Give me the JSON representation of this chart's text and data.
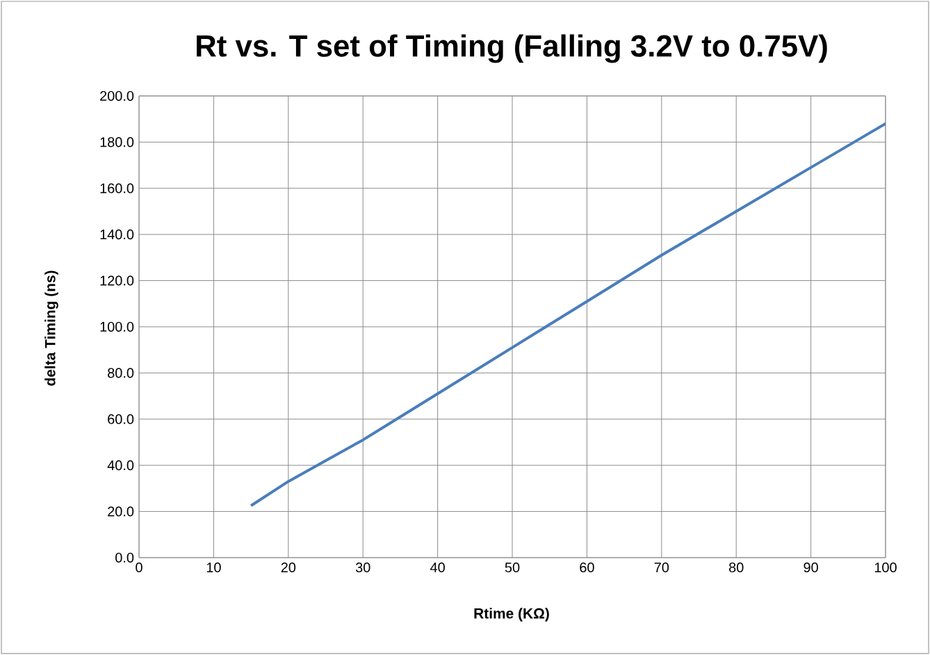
{
  "chart_data": {
    "type": "line",
    "title": "Rt vs. T set of Timing (Falling 3.2V to 0.75V)",
    "xlabel": "Rtime (KΩ)",
    "ylabel": "delta Timing (ns)",
    "x": [
      15,
      20,
      25,
      30,
      33,
      40,
      50,
      60,
      70,
      80,
      90,
      100
    ],
    "series": [
      {
        "color": "#4a7ebb",
        "values": [
          22.5,
          33,
          42,
          51,
          57,
          71,
          91,
          111,
          131,
          150,
          169,
          188
        ]
      }
    ],
    "xlim": [
      0,
      100
    ],
    "ylim": [
      0,
      200
    ],
    "xticks": [
      0,
      10,
      20,
      30,
      40,
      50,
      60,
      70,
      80,
      90,
      100
    ],
    "yticks": [
      {
        "value": 0,
        "label": "0.0"
      },
      {
        "value": 20,
        "label": "20.0"
      },
      {
        "value": 40,
        "label": "40.0"
      },
      {
        "value": 60,
        "label": "60.0"
      },
      {
        "value": 80,
        "label": "80.0"
      },
      {
        "value": 100,
        "label": "100.0"
      },
      {
        "value": 120,
        "label": "120.0"
      },
      {
        "value": 140,
        "label": "140.0"
      },
      {
        "value": 160,
        "label": "160.0"
      },
      {
        "value": 180,
        "label": "180.0"
      },
      {
        "value": 200,
        "label": "200.0"
      }
    ],
    "grid": true,
    "marker": "none",
    "line_style": "solid"
  }
}
